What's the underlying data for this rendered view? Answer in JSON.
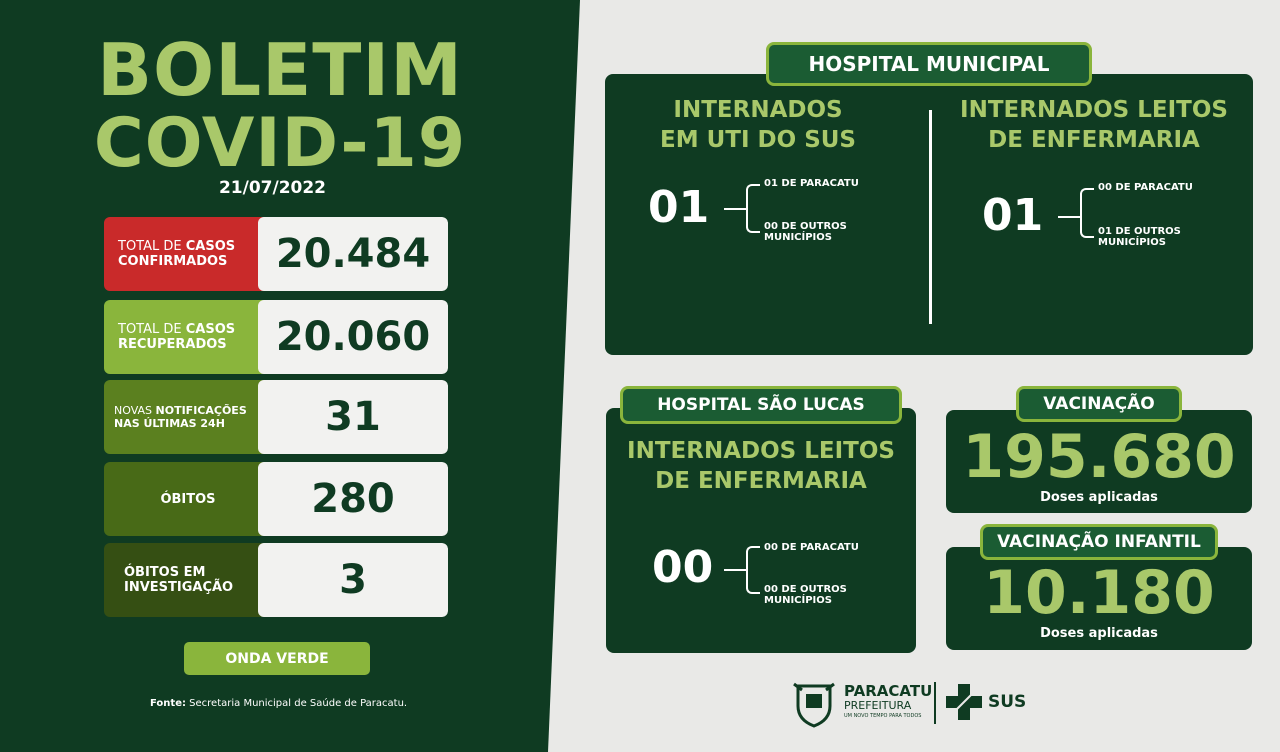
{
  "bulletin": {
    "title_line1": "BOLETIM",
    "title_line2": "COVID-19",
    "date": "21/07/2022"
  },
  "stats": [
    {
      "label_a": "TOTAL DE ",
      "label_b": "CASOS",
      "label_c": "CONFIRMADOS",
      "value": "20.484",
      "color": "#c92a2a"
    },
    {
      "label_a": "TOTAL DE ",
      "label_b": "CASOS",
      "label_c": "RECUPERADOS",
      "value": "20.060",
      "color": "#8ab53c"
    },
    {
      "label_a": "NOVAS ",
      "label_b": "NOTIFICAÇÕES",
      "label_c": "NAS ÚLTIMAS 24H",
      "value": "31",
      "color": "#5b801f"
    },
    {
      "label_a": "",
      "label_b": "ÓBITOS",
      "label_c": "",
      "value": "280",
      "color": "#486a17"
    },
    {
      "label_a": "",
      "label_b": "ÓBITOS EM",
      "label_c": "INVESTIGAÇÃO",
      "value": "3",
      "color": "#354f13"
    }
  ],
  "onda": "ONDA VERDE",
  "fonte": {
    "label": "Fonte:",
    "text": " Secretaria Municipal de Saúde de Paracatu."
  },
  "hospital_municipal": {
    "tag": "HOSPITAL MUNICIPAL",
    "uti": {
      "title1": "INTERNADOS",
      "title2": "EM UTI DO SUS",
      "total": "01",
      "local": "01 DE PARACATU",
      "outros1": "00 DE OUTROS",
      "outros2": "MUNICÍPIOS"
    },
    "enf": {
      "title1": "INTERNADOS LEITOS",
      "title2": "DE ENFERMARIA",
      "total": "01",
      "local": "00 DE PARACATU",
      "outros1": "01 DE OUTROS",
      "outros2": "MUNICÍPIOS"
    }
  },
  "hospital_sao_lucas": {
    "tag": "HOSPITAL SÃO LUCAS",
    "title1": "INTERNADOS LEITOS",
    "title2": "DE ENFERMARIA",
    "total": "00",
    "local": "00 DE PARACATU",
    "outros1": "00 DE OUTROS",
    "outros2": "MUNICÍPIOS"
  },
  "vacinacao": {
    "tag": "VACINAÇÃO",
    "value": "195.680",
    "sub": "Doses aplicadas"
  },
  "vacinacao_infantil": {
    "tag": "VACINAÇÃO INFANTIL",
    "value": "10.180",
    "sub": "Doses aplicadas"
  },
  "logos": {
    "city1": "PARACATU",
    "city2": "PREFEITURA",
    "city3": "UM NOVO TEMPO PARA TODOS",
    "sus": "SUS"
  }
}
